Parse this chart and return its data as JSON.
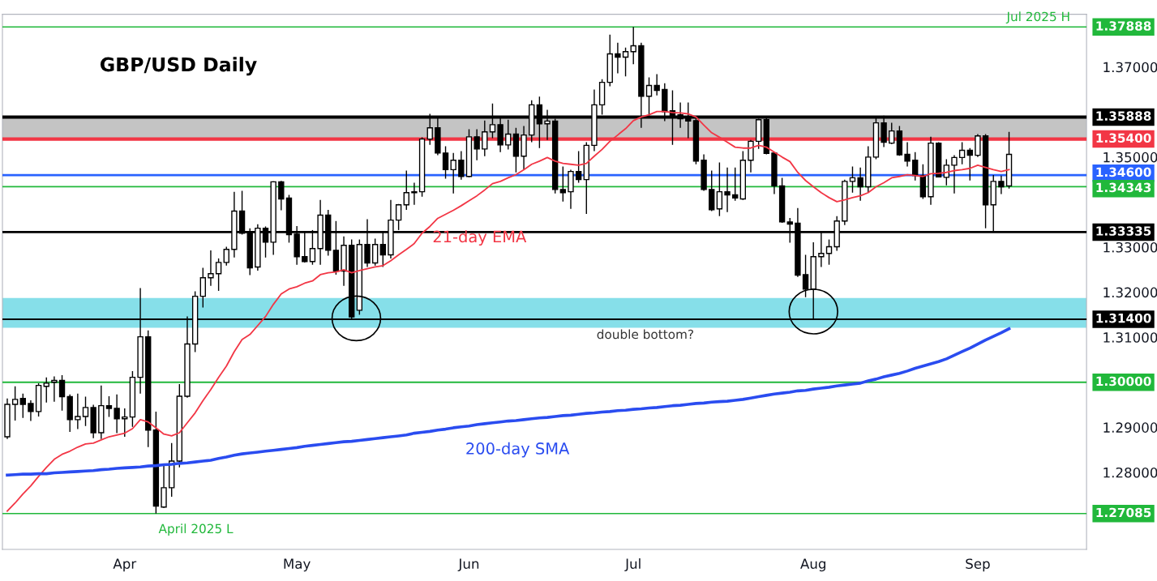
{
  "chart_data": {
    "type": "candlestick",
    "title": "GBP/USD Daily",
    "categories": [
      null,
      null,
      null,
      null,
      null,
      null,
      null,
      null,
      null,
      null,
      null,
      null,
      null,
      null,
      null,
      "Apr",
      null,
      null,
      null,
      null,
      null,
      null,
      null,
      null,
      null,
      null,
      null,
      null,
      null,
      null,
      null,
      null,
      null,
      null,
      null,
      null,
      null,
      "May",
      null,
      null,
      null,
      null,
      null,
      null,
      null,
      null,
      null,
      null,
      null,
      null,
      null,
      null,
      null,
      null,
      null,
      null,
      null,
      null,
      null,
      "Jun",
      null,
      null,
      null,
      null,
      null,
      null,
      null,
      null,
      null,
      null,
      null,
      null,
      null,
      null,
      null,
      null,
      null,
      null,
      null,
      null,
      "Jul",
      null,
      null,
      null,
      null,
      null,
      null,
      null,
      null,
      null,
      null,
      null,
      null,
      null,
      null,
      null,
      null,
      null,
      null,
      null,
      null,
      null,
      null,
      "Aug",
      null,
      null,
      null,
      null,
      null,
      null,
      null,
      null,
      null,
      null,
      null,
      null,
      null,
      null,
      null,
      null,
      null,
      null,
      null,
      null,
      "Sep",
      null,
      null,
      null,
      null
    ],
    "ohlc": [
      [
        1.2879,
        1.2964,
        1.2874,
        1.2951
      ],
      [
        1.2951,
        1.2991,
        1.2915,
        1.2962
      ],
      [
        1.2964,
        1.2975,
        1.2921,
        1.2951
      ],
      [
        1.2953,
        1.296,
        1.2914,
        1.2935
      ],
      [
        1.2935,
        1.2998,
        1.2924,
        1.2993
      ],
      [
        1.2991,
        1.3011,
        1.2955,
        1.2998
      ],
      [
        1.3,
        1.3013,
        1.2957,
        1.3004
      ],
      [
        1.3004,
        1.3016,
        1.2937,
        1.2968
      ],
      [
        1.2968,
        1.2973,
        1.289,
        1.2917
      ],
      [
        1.2917,
        1.2975,
        1.2896,
        1.2924
      ],
      [
        1.2924,
        1.2968,
        1.2903,
        1.2944
      ],
      [
        1.2944,
        1.295,
        1.2876,
        1.2888
      ],
      [
        1.2888,
        1.2993,
        1.2874,
        1.2948
      ],
      [
        1.2948,
        1.2969,
        1.2923,
        1.2942
      ],
      [
        1.2942,
        1.2973,
        1.2887,
        1.2919
      ],
      [
        1.2919,
        1.2942,
        1.2879,
        1.2923
      ],
      [
        1.2923,
        1.3025,
        1.2901,
        1.3011
      ],
      [
        1.3011,
        1.3209,
        1.2975,
        1.3101
      ],
      [
        1.3101,
        1.3115,
        1.2856,
        1.2894
      ],
      [
        1.2894,
        1.2935,
        1.27085,
        1.2725
      ],
      [
        1.2723,
        1.2815,
        1.2721,
        1.2766
      ],
      [
        1.2766,
        1.2865,
        1.2746,
        1.2825
      ],
      [
        1.2825,
        1.2996,
        1.2811,
        1.2969
      ],
      [
        1.2969,
        1.3146,
        1.2966,
        1.3085
      ],
      [
        1.3085,
        1.3202,
        1.3067,
        1.3191
      ],
      [
        1.3191,
        1.3254,
        1.3166,
        1.3232
      ],
      [
        1.3232,
        1.3293,
        1.3214,
        1.3241
      ],
      [
        1.3241,
        1.3275,
        1.3203,
        1.3266
      ],
      [
        1.3266,
        1.3301,
        1.3259,
        1.3295
      ],
      [
        1.3295,
        1.3423,
        1.3277,
        1.338
      ],
      [
        1.338,
        1.3425,
        1.3328,
        1.3331
      ],
      [
        1.3333,
        1.3342,
        1.3238,
        1.3254
      ],
      [
        1.3256,
        1.3351,
        1.3248,
        1.3342
      ],
      [
        1.3342,
        1.3346,
        1.3277,
        1.3311
      ],
      [
        1.3311,
        1.3446,
        1.3283,
        1.3445
      ],
      [
        1.3445,
        1.3447,
        1.3382,
        1.3407
      ],
      [
        1.3409,
        1.3416,
        1.331,
        1.3328
      ],
      [
        1.3329,
        1.3347,
        1.3261,
        1.3279
      ],
      [
        1.3279,
        1.3333,
        1.3266,
        1.3268
      ],
      [
        1.3268,
        1.3338,
        1.3261,
        1.3297
      ],
      [
        1.3297,
        1.3405,
        1.3261,
        1.3371
      ],
      [
        1.3371,
        1.3383,
        1.3281,
        1.3293
      ],
      [
        1.3293,
        1.3358,
        1.3239,
        1.3247
      ],
      [
        1.3247,
        1.3324,
        1.3214,
        1.3304
      ],
      [
        1.3304,
        1.3317,
        1.314,
        1.3145
      ],
      [
        1.316,
        1.3317,
        1.315,
        1.3306
      ],
      [
        1.3306,
        1.3362,
        1.3256,
        1.3265
      ],
      [
        1.3265,
        1.3319,
        1.3259,
        1.3306
      ],
      [
        1.3306,
        1.3333,
        1.3256,
        1.3283
      ],
      [
        1.3283,
        1.3405,
        1.3275,
        1.336
      ],
      [
        1.336,
        1.3396,
        1.3338,
        1.3394
      ],
      [
        1.3394,
        1.347,
        1.3383,
        1.3421
      ],
      [
        1.3421,
        1.3443,
        1.3394,
        1.3423
      ],
      [
        1.3423,
        1.3544,
        1.3412,
        1.354
      ],
      [
        1.354,
        1.3596,
        1.3527,
        1.3565
      ],
      [
        1.3565,
        1.359,
        1.3504,
        1.3509
      ],
      [
        1.3509,
        1.3524,
        1.3452,
        1.3472
      ],
      [
        1.3472,
        1.3509,
        1.3419,
        1.3493
      ],
      [
        1.3493,
        1.3513,
        1.345,
        1.3457
      ],
      [
        1.3457,
        1.3562,
        1.3455,
        1.3545
      ],
      [
        1.3545,
        1.3562,
        1.3493,
        1.3518
      ],
      [
        1.3518,
        1.3581,
        1.3502,
        1.3556
      ],
      [
        1.3556,
        1.3619,
        1.3542,
        1.3572
      ],
      [
        1.3572,
        1.3587,
        1.3511,
        1.3527
      ],
      [
        1.3527,
        1.3583,
        1.3517,
        1.3551
      ],
      [
        1.3551,
        1.3565,
        1.3466,
        1.3502
      ],
      [
        1.3502,
        1.3569,
        1.3472,
        1.3549
      ],
      [
        1.3549,
        1.3626,
        1.3533,
        1.3616
      ],
      [
        1.3616,
        1.3634,
        1.352,
        1.3574
      ],
      [
        1.3574,
        1.3605,
        1.3538,
        1.358
      ],
      [
        1.358,
        1.3585,
        1.3419,
        1.3428
      ],
      [
        1.3428,
        1.3479,
        1.3401,
        1.3421
      ],
      [
        1.3423,
        1.3472,
        1.3385,
        1.3468
      ],
      [
        1.3468,
        1.3513,
        1.3443,
        1.345
      ],
      [
        1.345,
        1.3533,
        1.3374,
        1.3526
      ],
      [
        1.3526,
        1.365,
        1.3513,
        1.3616
      ],
      [
        1.3616,
        1.3673,
        1.3594,
        1.3666
      ],
      [
        1.3666,
        1.3772,
        1.3657,
        1.3729
      ],
      [
        1.3729,
        1.3754,
        1.3686,
        1.3722
      ],
      [
        1.3722,
        1.3743,
        1.3679,
        1.3734
      ],
      [
        1.3734,
        1.37888,
        1.3706,
        1.3747
      ],
      [
        1.3747,
        1.3754,
        1.3565,
        1.3635
      ],
      [
        1.3635,
        1.3677,
        1.359,
        1.3659
      ],
      [
        1.3659,
        1.3684,
        1.3637,
        1.3648
      ],
      [
        1.365,
        1.3664,
        1.358,
        1.3601
      ],
      [
        1.3603,
        1.3648,
        1.3527,
        1.3592
      ],
      [
        1.3594,
        1.3621,
        1.3565,
        1.3585
      ],
      [
        1.3587,
        1.3621,
        1.3542,
        1.358
      ],
      [
        1.3581,
        1.3587,
        1.3484,
        1.3491
      ],
      [
        1.3493,
        1.3506,
        1.3425,
        1.3428
      ],
      [
        1.3428,
        1.347,
        1.338,
        1.3383
      ],
      [
        1.3385,
        1.3488,
        1.3369,
        1.3423
      ],
      [
        1.3423,
        1.3477,
        1.3378,
        1.3416
      ],
      [
        1.3416,
        1.3477,
        1.3403,
        1.3409
      ],
      [
        1.3407,
        1.3513,
        1.3405,
        1.3493
      ],
      [
        1.3493,
        1.3538,
        1.3466,
        1.3535
      ],
      [
        1.3535,
        1.3585,
        1.3518,
        1.3583
      ],
      [
        1.3583,
        1.359,
        1.3506,
        1.3508
      ],
      [
        1.3509,
        1.3511,
        1.3418,
        1.3436
      ],
      [
        1.3436,
        1.3454,
        1.3354,
        1.3356
      ],
      [
        1.3356,
        1.3365,
        1.331,
        1.3351
      ],
      [
        1.3353,
        1.3387,
        1.3234,
        1.3238
      ],
      [
        1.3239,
        1.3283,
        1.3189,
        1.3207
      ],
      [
        1.3207,
        1.3311,
        1.314,
        1.3279
      ],
      [
        1.3279,
        1.3333,
        1.3256,
        1.3286
      ],
      [
        1.3286,
        1.3317,
        1.3261,
        1.3301
      ],
      [
        1.3301,
        1.3369,
        1.3292,
        1.3358
      ],
      [
        1.3358,
        1.345,
        1.3349,
        1.3446
      ],
      [
        1.3446,
        1.3479,
        1.3421,
        1.3454
      ],
      [
        1.3454,
        1.3477,
        1.3403,
        1.3434
      ],
      [
        1.3434,
        1.3524,
        1.3421,
        1.35
      ],
      [
        1.35,
        1.3587,
        1.3495,
        1.3576
      ],
      [
        1.3576,
        1.3592,
        1.3522,
        1.3533
      ],
      [
        1.3531,
        1.3576,
        1.3529,
        1.3558
      ],
      [
        1.3558,
        1.3569,
        1.3503,
        1.3505
      ],
      [
        1.3506,
        1.3533,
        1.3479,
        1.3491
      ],
      [
        1.3493,
        1.3511,
        1.3448,
        1.3459
      ],
      [
        1.3459,
        1.3484,
        1.3407,
        1.3412
      ],
      [
        1.3412,
        1.3545,
        1.3394,
        1.3531
      ],
      [
        1.3531,
        1.3533,
        1.3455,
        1.3456
      ],
      [
        1.3455,
        1.3495,
        1.3437,
        1.3482
      ],
      [
        1.3482,
        1.3504,
        1.3419,
        1.3499
      ],
      [
        1.3499,
        1.3533,
        1.3484,
        1.3515
      ],
      [
        1.3515,
        1.352,
        1.3448,
        1.3504
      ],
      [
        1.3504,
        1.3551,
        1.35,
        1.3547
      ],
      [
        1.3547,
        1.3551,
        1.3342,
        1.3394
      ],
      [
        1.3394,
        1.346,
        1.33335,
        1.3446
      ],
      [
        1.3446,
        1.3459,
        1.3418,
        1.3434
      ],
      [
        1.3436,
        1.3556,
        1.343,
        1.3506
      ]
    ],
    "series": [
      {
        "name": "21-day EMA",
        "type": "line",
        "color": "#f23645",
        "values": [
          1.2714,
          1.2732,
          1.2752,
          1.277,
          1.2791,
          1.2811,
          1.2829,
          1.284,
          1.2847,
          1.2856,
          1.2863,
          1.2865,
          1.2872,
          1.2879,
          1.2883,
          1.2887,
          1.2897,
          1.2917,
          1.2912,
          1.2899,
          1.2885,
          1.2881,
          1.2888,
          1.291,
          1.2932,
          1.2959,
          1.2984,
          1.3011,
          1.3036,
          1.3068,
          1.3095,
          1.3106,
          1.3126,
          1.3146,
          1.3173,
          1.3196,
          1.3207,
          1.3212,
          1.322,
          1.3225,
          1.3239,
          1.3243,
          1.3245,
          1.325,
          1.3243,
          1.3248,
          1.3252,
          1.3256,
          1.3259,
          1.327,
          1.3283,
          1.3295,
          1.3308,
          1.3331,
          1.3346,
          1.3364,
          1.3373,
          1.3382,
          1.3392,
          1.3403,
          1.3414,
          1.3427,
          1.3441,
          1.3446,
          1.3454,
          1.3461,
          1.3472,
          1.3484,
          1.3491,
          1.3499,
          1.3491,
          1.3486,
          1.3484,
          1.3482,
          1.3486,
          1.3502,
          1.3517,
          1.3535,
          1.3549,
          1.3563,
          1.3581,
          1.3589,
          1.3594,
          1.3601,
          1.3601,
          1.3599,
          1.3598,
          1.3596,
          1.3589,
          1.3571,
          1.3554,
          1.3544,
          1.3533,
          1.3522,
          1.352,
          1.352,
          1.3526,
          1.3522,
          1.3511,
          1.35,
          1.349,
          1.3466,
          1.3448,
          1.3434,
          1.3421,
          1.341,
          1.3401,
          1.3405,
          1.341,
          1.3414,
          1.3421,
          1.3434,
          1.3443,
          1.3454,
          1.3457,
          1.3461,
          1.3459,
          1.3457,
          1.3463,
          1.3464,
          1.3466,
          1.347,
          1.3472,
          1.3475,
          1.3482,
          1.3477,
          1.3472,
          1.3468,
          1.3472
        ]
      },
      {
        "name": "200-day SMA",
        "type": "line",
        "color": "#2a4cf0",
        "values": [
          1.2794,
          1.2795,
          1.2796,
          1.2796,
          1.2797,
          1.2797,
          1.2799,
          1.28,
          1.2801,
          1.2802,
          1.2803,
          1.2804,
          1.2806,
          1.2807,
          1.2809,
          1.281,
          1.2811,
          1.2812,
          1.2814,
          1.2815,
          1.2817,
          1.2818,
          1.282,
          1.2821,
          1.2823,
          1.2825,
          1.2827,
          1.2831,
          1.2834,
          1.2838,
          1.2841,
          1.2843,
          1.2845,
          1.2847,
          1.2849,
          1.2851,
          1.2853,
          1.2855,
          1.2858,
          1.286,
          1.2862,
          1.2864,
          1.2866,
          1.2868,
          1.2869,
          1.2871,
          1.2873,
          1.2875,
          1.2877,
          1.2879,
          1.2881,
          1.2883,
          1.2887,
          1.2889,
          1.2891,
          1.2894,
          1.2896,
          1.2899,
          1.2901,
          1.2903,
          1.2906,
          1.2908,
          1.291,
          1.2912,
          1.2914,
          1.2915,
          1.2917,
          1.2919,
          1.2921,
          1.2922,
          1.2924,
          1.2926,
          1.2927,
          1.2929,
          1.2931,
          1.2932,
          1.2934,
          1.2935,
          1.2937,
          1.2938,
          1.294,
          1.2941,
          1.2943,
          1.2944,
          1.2946,
          1.2948,
          1.2949,
          1.2951,
          1.2953,
          1.2954,
          1.2956,
          1.2957,
          1.2958,
          1.296,
          1.2962,
          1.2965,
          1.2968,
          1.2971,
          1.2974,
          1.2976,
          1.2978,
          1.2981,
          1.2982,
          1.2985,
          1.2987,
          1.2989,
          1.2992,
          1.2994,
          1.2996,
          1.2998,
          1.3003,
          1.3007,
          1.3012,
          1.3016,
          1.302,
          1.3025,
          1.3031,
          1.3036,
          1.3041,
          1.3046,
          1.3052,
          1.306,
          1.3068,
          1.3076,
          1.3085,
          1.3094,
          1.3102,
          1.311,
          1.3119
        ]
      }
    ],
    "ylim": [
      1.2629,
      1.3817
    ],
    "yticks": [
      {
        "value": 1.28,
        "label": "1.28000"
      },
      {
        "value": 1.29,
        "label": "1.29000"
      },
      {
        "value": 1.31,
        "label": "1.31000"
      },
      {
        "value": 1.32,
        "label": "1.32000"
      },
      {
        "value": 1.33,
        "label": "1.33000"
      },
      {
        "value": 1.35,
        "label": "1.35000"
      },
      {
        "value": 1.37,
        "label": "1.37000"
      }
    ],
    "ref_lines": [
      {
        "axis": "y",
        "value": 1.37888,
        "label": "1.37888",
        "color": "#21b83b"
      },
      {
        "axis": "y",
        "value": 1.35888,
        "label": "1.35888",
        "color": "#000000"
      },
      {
        "axis": "y",
        "value": 1.354,
        "label": "1.35400",
        "color": "#f23645"
      },
      {
        "axis": "y",
        "value": 1.346,
        "label": "1.34600",
        "color": "#2962ff"
      },
      {
        "axis": "y",
        "value": 1.34343,
        "label": "1.34343",
        "color": "#21b83b"
      },
      {
        "axis": "y",
        "value": 1.33335,
        "label": "1.33335",
        "color": "#000000"
      },
      {
        "axis": "y",
        "value": 1.314,
        "label": "1.31400",
        "color": "#000000"
      },
      {
        "axis": "y",
        "value": 1.3,
        "label": "1.30000",
        "color": "#21b83b"
      },
      {
        "axis": "y",
        "value": 1.27085,
        "label": "1.27085",
        "color": "#21b83b"
      }
    ],
    "bands": [
      {
        "axis": "y",
        "from": 1.354,
        "to": 1.35888,
        "color": "#c4c4c4"
      },
      {
        "axis": "y",
        "from": 1.3121,
        "to": 1.3187,
        "color": "#86dfe9"
      }
    ],
    "annotations": [
      {
        "text": "Jul 2025 H",
        "y": 1.37888
      },
      {
        "text": "April 2025 L",
        "y": 1.27085
      },
      {
        "text": "double bottom?",
        "y": 1.314
      }
    ]
  }
}
